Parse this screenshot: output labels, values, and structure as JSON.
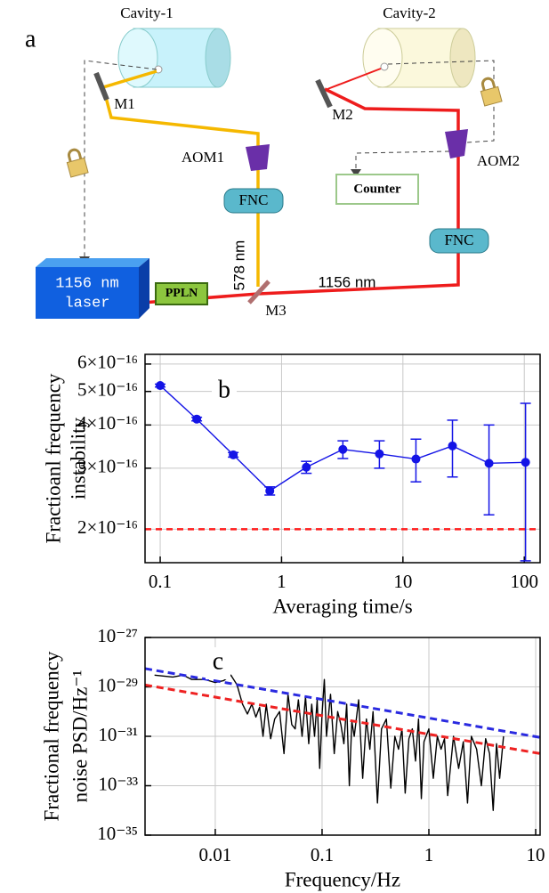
{
  "diagram": {
    "panel_label": "a",
    "cavities": [
      "Cavity-1",
      "Cavity-2"
    ],
    "mirrors": [
      "M1",
      "M2",
      "M3"
    ],
    "aoms": [
      "AOM1",
      "AOM2"
    ],
    "fnc": [
      "FNC",
      "FNC"
    ],
    "counter": "Counter",
    "laser": [
      "1156 nm",
      "laser"
    ],
    "ppln": "PPLN",
    "wavelengths": [
      "578 nm",
      "1156 nm"
    ]
  },
  "chart_data": [
    {
      "type": "line",
      "annotation": "b",
      "x_label": "Averaging time/s",
      "y_label": [
        "Fractioanl frequency",
        "instability"
      ],
      "xlog": true,
      "ylog": true,
      "grid": true,
      "xlim": [
        0.075,
        135
      ],
      "ylim": [
        1.6e-16,
        6.4e-16
      ],
      "xticks": [
        0.1,
        1,
        10,
        100
      ],
      "yticks": [
        {
          "value": 2e-16,
          "label": "2×10⁻¹⁶"
        },
        {
          "value": 3e-16,
          "label": "3×10⁻¹⁶"
        },
        {
          "value": 4e-16,
          "label": "4×10⁻¹⁶"
        },
        {
          "value": 5e-16,
          "label": "5×10⁻¹⁶"
        },
        {
          "value": 6e-16,
          "label": "6×10⁻¹⁶"
        }
      ],
      "series": [
        {
          "color": "#1414e6",
          "marker": "circle",
          "x": [
            0.1,
            0.2,
            0.4,
            0.8,
            1.6,
            3.2,
            6.4,
            12.8,
            25.6,
            51.2,
            102.4
          ],
          "values": [
            5.2e-16,
            4.16e-16,
            3.28e-16,
            2.58e-16,
            3.02e-16,
            3.4e-16,
            3.3e-16,
            3.19e-16,
            3.48e-16,
            3.1e-16,
            3.12e-16
          ],
          "errors": [
            5e-18,
            5e-18,
            5e-18,
            7e-18,
            1.2e-17,
            2e-17,
            3e-17,
            4.5e-17,
            6.5e-17,
            9e-17,
            1.5e-16
          ]
        }
      ],
      "reference_lines": [
        {
          "value": 2e-16,
          "color": "#ff1a1a",
          "dash": true
        }
      ]
    },
    {
      "type": "line",
      "annotation": "c",
      "x_label": "Frequency/Hz",
      "y_label": [
        "Fractional frequency",
        "noise PSD/Hz⁻¹"
      ],
      "xlog": true,
      "ylog": true,
      "grid": true,
      "xlim": [
        0.0022,
        11
      ],
      "ylim": [
        1e-35,
        1e-27
      ],
      "xticks": [
        0.01,
        0.1,
        1,
        10
      ],
      "yticks": [
        {
          "value": 1e-35,
          "label": "10⁻³⁵"
        },
        {
          "value": 1e-33,
          "label": "10⁻³³"
        },
        {
          "value": 1e-31,
          "label": "10⁻³¹"
        },
        {
          "value": 1e-29,
          "label": "10⁻²⁹"
        },
        {
          "value": 1e-27,
          "label": "10⁻²⁷"
        }
      ],
      "series": [
        {
          "color": "#000000",
          "x": [
            0.0027,
            0.004,
            0.005,
            0.006,
            0.008,
            0.01,
            0.012,
            0.014,
            0.016,
            0.018,
            0.02,
            0.022,
            0.024,
            0.026,
            0.028,
            0.03,
            0.033,
            0.036,
            0.04,
            0.044,
            0.048,
            0.052,
            0.056,
            0.06,
            0.065,
            0.07,
            0.075,
            0.08,
            0.085,
            0.09,
            0.095,
            0.1,
            0.105,
            0.11,
            0.12,
            0.13,
            0.14,
            0.15,
            0.16,
            0.17,
            0.18,
            0.19,
            0.2,
            0.22,
            0.24,
            0.26,
            0.28,
            0.3,
            0.33,
            0.36,
            0.4,
            0.44,
            0.48,
            0.52,
            0.56,
            0.6,
            0.65,
            0.7,
            0.75,
            0.8,
            0.85,
            0.9,
            1,
            1.1,
            1.2,
            1.3,
            1.4,
            1.5,
            1.7,
            1.9,
            2.1,
            2.3,
            2.5,
            2.8,
            3.1,
            3.4,
            3.7,
            4,
            4.3,
            4.6,
            5
          ],
          "values": [
            3e-29,
            2.5e-29,
            3e-29,
            2e-29,
            2e-29,
            1.5e-29,
            1.8e-29,
            3e-29,
            1.2e-29,
            2e-30,
            8e-31,
            2e-30,
            6e-31,
            1.5e-30,
            1e-31,
            2e-30,
            8e-32,
            5e-31,
            1e-30,
            2e-32,
            5e-30,
            3e-31,
            2e-31,
            3e-30,
            1e-31,
            4e-30,
            5e-32,
            2e-30,
            1e-31,
            3e-30,
            5e-33,
            8e-31,
            2e-29,
            1e-31,
            5e-30,
            2e-32,
            1e-30,
            3e-31,
            5e-32,
            2e-30,
            1e-33,
            4e-31,
            1e-31,
            3e-30,
            2e-33,
            5e-31,
            3e-32,
            1e-30,
            2e-34,
            2e-31,
            5e-31,
            8e-34,
            1e-31,
            3e-32,
            2e-31,
            5e-34,
            8e-32,
            2e-31,
            1e-32,
            5e-31,
            3e-34,
            6e-32,
            2e-31,
            2e-33,
            1e-31,
            3e-32,
            8e-32,
            4e-34,
            1e-31,
            5e-33,
            6e-32,
            2e-34,
            1e-31,
            3e-32,
            1e-33,
            8e-32,
            2e-32,
            1e-34,
            5e-32,
            2e-33,
            1e-31
          ]
        },
        {
          "color": "#2a2ae0",
          "dash": true,
          "x": [
            0.0022,
            11
          ],
          "values": [
            5.5e-29,
            9e-32
          ]
        },
        {
          "color": "#ee2222",
          "dash": true,
          "x": [
            0.0022,
            11
          ],
          "values": [
            1.2e-29,
            2e-32
          ]
        }
      ]
    }
  ]
}
